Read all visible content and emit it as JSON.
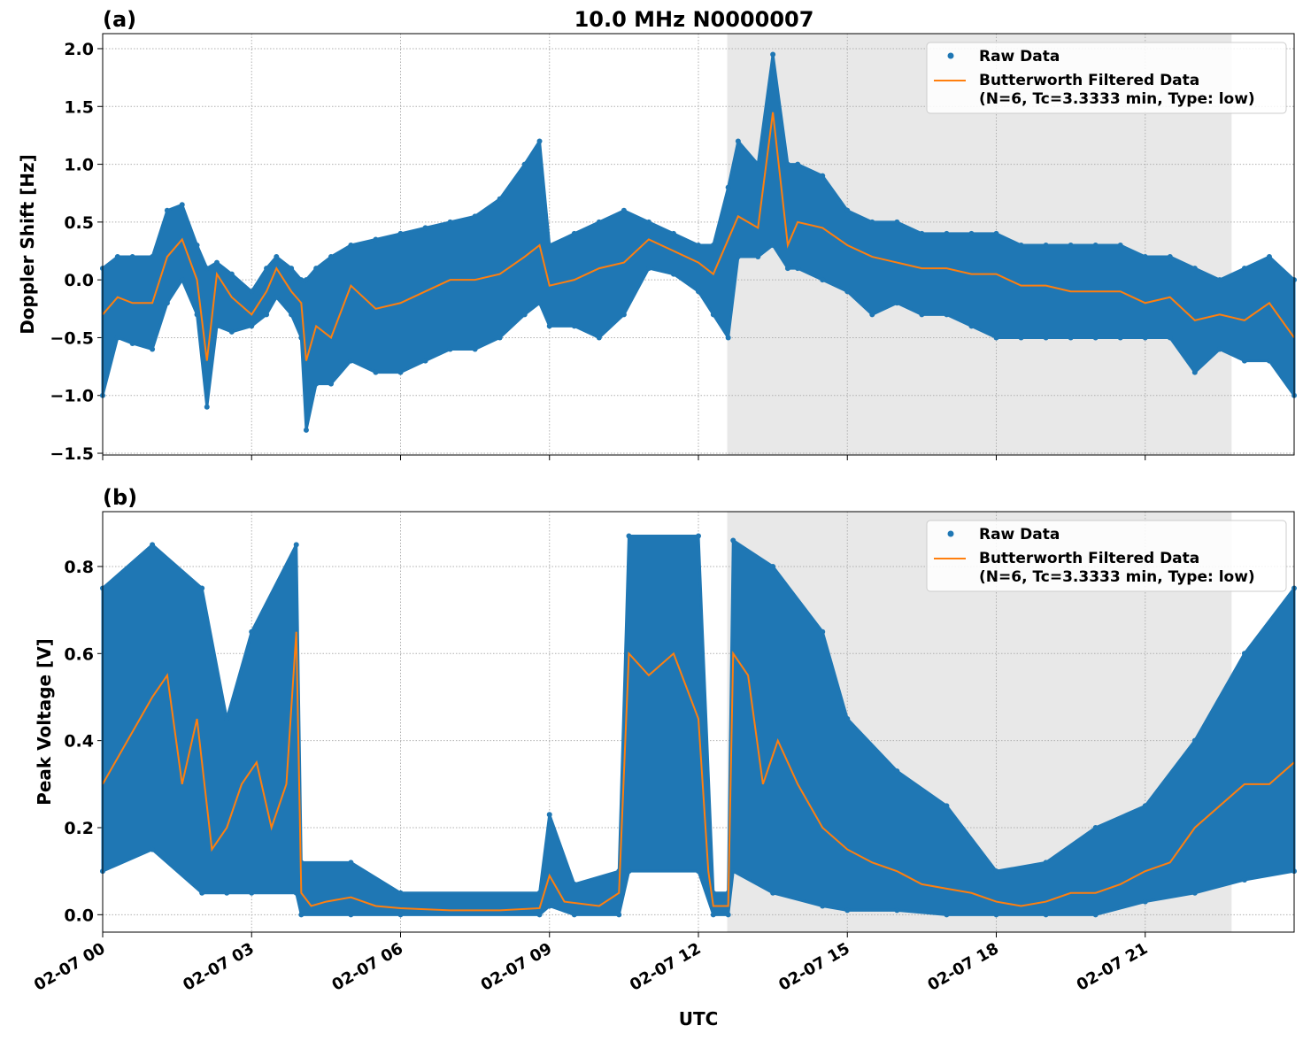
{
  "title": "10.0 MHz N0000007",
  "xlabel": "UTC",
  "x_tick_labels": [
    "02-07 00",
    "02-07 03",
    "02-07 06",
    "02-07 09",
    "02-07 12",
    "02-07 15",
    "02-07 18",
    "02-07 21"
  ],
  "colors": {
    "raw": "#1f77b4",
    "filtered": "#ff7f0e",
    "shade": "#e8e8e8",
    "grid": "#b0b0b0"
  },
  "chart_data": [
    {
      "type": "scatter",
      "panel_label": "(a)",
      "ylabel": "Doppler Shift [Hz]",
      "xlim_hours": [
        0,
        24
      ],
      "ylim": [
        -1.515,
        2.13
      ],
      "yticks": [
        -1.5,
        -1.0,
        -0.5,
        0.0,
        0.5,
        1.0,
        1.5,
        2.0
      ],
      "ytick_labels": [
        "−1.5",
        "−1.0",
        "−0.5",
        "0.0",
        "0.5",
        "1.0",
        "1.5",
        "2.0"
      ],
      "grid": true,
      "shaded_span_hours": [
        12.58,
        22.74
      ],
      "legend": {
        "position": "top-right",
        "entries": [
          "Raw Data",
          "Butterworth Filtered Data",
          "(N=6, Tc=3.3333 min, Type: low)"
        ]
      },
      "raw_band": {
        "x": [
          0,
          0.3,
          0.6,
          1.0,
          1.3,
          1.6,
          1.9,
          2.1,
          2.3,
          2.6,
          3.0,
          3.3,
          3.5,
          3.8,
          4.0,
          4.1,
          4.3,
          4.6,
          5.0,
          5.5,
          6.0,
          6.5,
          7.0,
          7.5,
          8.0,
          8.5,
          8.8,
          9.0,
          9.5,
          10.0,
          10.5,
          11.0,
          11.5,
          12.0,
          12.3,
          12.6,
          12.8,
          13.2,
          13.5,
          13.8,
          14.0,
          14.5,
          15.0,
          15.5,
          16.0,
          16.5,
          17.0,
          17.5,
          18.0,
          18.5,
          19.0,
          19.5,
          20.0,
          20.5,
          21.0,
          21.5,
          22.0,
          22.5,
          23.0,
          23.5,
          24.0
        ],
        "lower": [
          -1.0,
          -0.5,
          -0.55,
          -0.6,
          -0.2,
          0.0,
          -0.3,
          -1.1,
          -0.4,
          -0.45,
          -0.4,
          -0.3,
          -0.15,
          -0.3,
          -0.5,
          -1.3,
          -0.9,
          -0.9,
          -0.7,
          -0.8,
          -0.8,
          -0.7,
          -0.6,
          -0.6,
          -0.5,
          -0.3,
          -0.2,
          -0.4,
          -0.4,
          -0.5,
          -0.3,
          0.1,
          0.05,
          -0.1,
          -0.3,
          -0.5,
          0.2,
          0.2,
          0.3,
          0.1,
          0.1,
          0.0,
          -0.1,
          -0.3,
          -0.2,
          -0.3,
          -0.3,
          -0.4,
          -0.5,
          -0.5,
          -0.5,
          -0.5,
          -0.5,
          -0.5,
          -0.5,
          -0.5,
          -0.8,
          -0.6,
          -0.7,
          -0.7,
          -1.0
        ],
        "upper": [
          0.1,
          0.2,
          0.2,
          0.2,
          0.6,
          0.65,
          0.3,
          0.1,
          0.15,
          0.05,
          -0.1,
          0.1,
          0.2,
          0.1,
          0.0,
          0.0,
          0.1,
          0.2,
          0.3,
          0.35,
          0.4,
          0.45,
          0.5,
          0.55,
          0.7,
          1.0,
          1.2,
          0.3,
          0.4,
          0.5,
          0.6,
          0.5,
          0.4,
          0.3,
          0.3,
          0.8,
          1.2,
          1.0,
          1.95,
          1.0,
          1.0,
          0.9,
          0.6,
          0.5,
          0.5,
          0.4,
          0.4,
          0.4,
          0.4,
          0.3,
          0.3,
          0.3,
          0.3,
          0.3,
          0.2,
          0.2,
          0.1,
          0.0,
          0.1,
          0.2,
          0.0
        ]
      },
      "filtered": {
        "x": [
          0,
          0.3,
          0.6,
          1.0,
          1.3,
          1.6,
          1.9,
          2.1,
          2.3,
          2.6,
          3.0,
          3.3,
          3.5,
          3.8,
          4.0,
          4.1,
          4.3,
          4.6,
          5.0,
          5.5,
          6.0,
          6.5,
          7.0,
          7.5,
          8.0,
          8.5,
          8.8,
          9.0,
          9.5,
          10.0,
          10.5,
          11.0,
          11.5,
          12.0,
          12.3,
          12.6,
          12.8,
          13.2,
          13.5,
          13.8,
          14.0,
          14.5,
          15.0,
          15.5,
          16.0,
          16.5,
          17.0,
          17.5,
          18.0,
          18.5,
          19.0,
          19.5,
          20.0,
          20.5,
          21.0,
          21.5,
          22.0,
          22.5,
          23.0,
          23.5,
          24.0
        ],
        "y": [
          -0.3,
          -0.15,
          -0.2,
          -0.2,
          0.2,
          0.35,
          0.0,
          -0.7,
          0.05,
          -0.15,
          -0.3,
          -0.1,
          0.1,
          -0.1,
          -0.2,
          -0.7,
          -0.4,
          -0.5,
          -0.05,
          -0.25,
          -0.2,
          -0.1,
          0.0,
          0.0,
          0.05,
          0.2,
          0.3,
          -0.05,
          0.0,
          0.1,
          0.15,
          0.35,
          0.25,
          0.15,
          0.05,
          0.35,
          0.55,
          0.45,
          1.45,
          0.3,
          0.5,
          0.45,
          0.3,
          0.2,
          0.15,
          0.1,
          0.1,
          0.05,
          0.05,
          -0.05,
          -0.05,
          -0.1,
          -0.1,
          -0.1,
          -0.2,
          -0.15,
          -0.35,
          -0.3,
          -0.35,
          -0.2,
          -0.5
        ]
      }
    },
    {
      "type": "scatter",
      "panel_label": "(b)",
      "ylabel": "Peak Voltage [V]",
      "xlim_hours": [
        0,
        24
      ],
      "ylim": [
        -0.04,
        0.926
      ],
      "yticks": [
        0.0,
        0.2,
        0.4,
        0.6,
        0.8
      ],
      "ytick_labels": [
        "0.0",
        "0.2",
        "0.4",
        "0.6",
        "0.8"
      ],
      "grid": true,
      "shaded_span_hours": [
        12.58,
        22.74
      ],
      "legend": {
        "position": "top-right",
        "entries": [
          "Raw Data",
          "Butterworth Filtered Data",
          "(N=6, Tc=3.3333 min, Type: low)"
        ]
      },
      "raw_band": {
        "x": [
          0,
          1.0,
          2.0,
          2.5,
          3.0,
          3.9,
          4.0,
          5.0,
          6.0,
          8.8,
          9.0,
          9.5,
          10.4,
          10.6,
          12.0,
          12.3,
          12.6,
          12.7,
          13.5,
          14.5,
          15.0,
          16.0,
          17.0,
          18.0,
          19.0,
          20.0,
          21.0,
          22.0,
          23.0,
          24.0
        ],
        "lower": [
          0.1,
          0.15,
          0.05,
          0.05,
          0.05,
          0.05,
          0.0,
          0.0,
          0.0,
          0.0,
          0.02,
          0.0,
          0.0,
          0.1,
          0.1,
          0.0,
          0.0,
          0.1,
          0.05,
          0.02,
          0.01,
          0.01,
          0.0,
          0.0,
          0.0,
          0.0,
          0.03,
          0.05,
          0.08,
          0.1
        ],
        "upper": [
          0.75,
          0.85,
          0.75,
          0.45,
          0.65,
          0.85,
          0.12,
          0.12,
          0.05,
          0.05,
          0.23,
          0.07,
          0.1,
          0.87,
          0.87,
          0.05,
          0.05,
          0.86,
          0.8,
          0.65,
          0.45,
          0.33,
          0.25,
          0.1,
          0.12,
          0.2,
          0.25,
          0.4,
          0.6,
          0.75
        ]
      },
      "filtered": {
        "x": [
          0,
          0.5,
          1.0,
          1.3,
          1.6,
          1.9,
          2.2,
          2.5,
          2.8,
          3.1,
          3.4,
          3.7,
          3.9,
          4.0,
          4.2,
          4.5,
          5.0,
          5.5,
          6.0,
          7.0,
          8.0,
          8.8,
          9.0,
          9.3,
          10.0,
          10.4,
          10.6,
          11.0,
          11.5,
          12.0,
          12.2,
          12.3,
          12.6,
          12.7,
          13.0,
          13.3,
          13.6,
          14.0,
          14.5,
          15.0,
          15.5,
          16.0,
          16.5,
          17.0,
          17.5,
          18.0,
          18.5,
          19.0,
          19.5,
          20.0,
          20.5,
          21.0,
          21.5,
          22.0,
          22.5,
          23.0,
          23.5,
          24.0
        ],
        "y": [
          0.3,
          0.4,
          0.5,
          0.55,
          0.3,
          0.45,
          0.15,
          0.2,
          0.3,
          0.35,
          0.2,
          0.3,
          0.65,
          0.05,
          0.02,
          0.03,
          0.04,
          0.02,
          0.015,
          0.01,
          0.01,
          0.015,
          0.09,
          0.03,
          0.02,
          0.05,
          0.6,
          0.55,
          0.6,
          0.45,
          0.1,
          0.02,
          0.02,
          0.6,
          0.55,
          0.3,
          0.4,
          0.3,
          0.2,
          0.15,
          0.12,
          0.1,
          0.07,
          0.06,
          0.05,
          0.03,
          0.02,
          0.03,
          0.05,
          0.05,
          0.07,
          0.1,
          0.12,
          0.2,
          0.25,
          0.3,
          0.3,
          0.35
        ]
      }
    }
  ]
}
